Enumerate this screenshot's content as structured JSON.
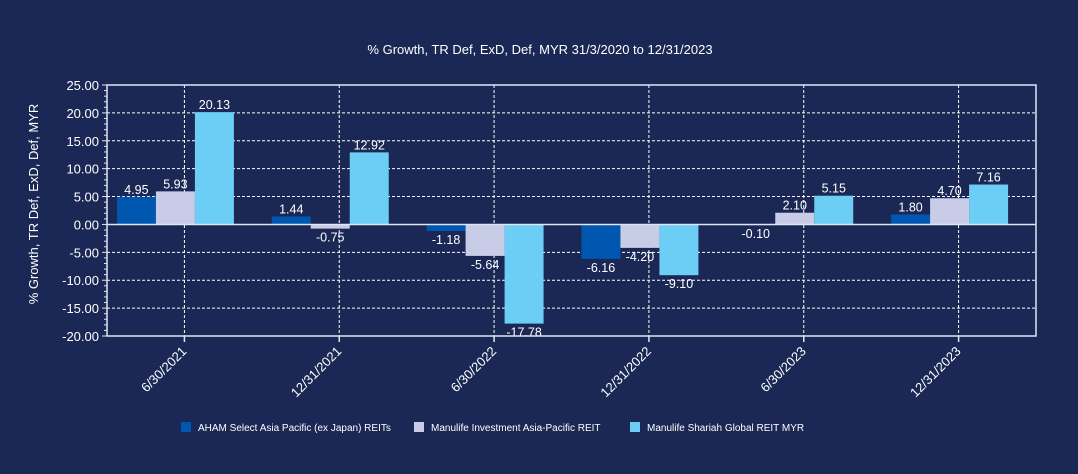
{
  "chart_data": {
    "type": "bar",
    "title": "% Growth, TR Def, ExD, Def, MYR 31/3/2020 to 12/31/2023",
    "xlabel": "",
    "ylabel": "% Growth, TR Def, ExD, Def, MYR",
    "ylim": [
      -20,
      25
    ],
    "yticks": [
      25,
      20,
      15,
      10,
      5,
      0,
      -5,
      -10,
      -15,
      -20
    ],
    "ytick_labels": [
      "25.00",
      "20.00",
      "15.00",
      "10.00",
      "5.00",
      "0.00",
      "-5.00",
      "-10.00",
      "-15.00",
      "-20.00"
    ],
    "grid": true,
    "legend_position": "bottom",
    "categories": [
      "6/30/2021",
      "12/31/2021",
      "6/30/2022",
      "12/31/2022",
      "6/30/2023",
      "12/31/2023"
    ],
    "series": [
      {
        "name": "AHAM Select Asia Pacific (ex Japan) REITs",
        "color": "#0057b0",
        "values": [
          4.95,
          1.44,
          -1.18,
          -6.16,
          -0.1,
          1.8
        ],
        "labels": [
          "4.95",
          "1.44",
          "-1.18",
          "-6.16",
          "-0.10",
          "1.80"
        ]
      },
      {
        "name": "Manulife Investment Asia-Pacific REIT",
        "color": "#c8cce6",
        "values": [
          5.93,
          -0.75,
          -5.64,
          -4.2,
          2.1,
          4.7
        ],
        "labels": [
          "5.93",
          "-0.75",
          "-5.64",
          "-4.20",
          "2.10",
          "4.70"
        ]
      },
      {
        "name": "Manulife Shariah Global REIT MYR",
        "color": "#6ccdf5",
        "values": [
          20.13,
          12.92,
          -17.78,
          -9.1,
          5.15,
          7.16
        ],
        "labels": [
          "20.13",
          "12.92",
          "-17.78",
          "-9.10",
          "5.15",
          "7.16"
        ]
      }
    ]
  },
  "colors": {
    "background": "#1b2754",
    "axis": "#dfe6f5",
    "text": "#ffffff"
  }
}
